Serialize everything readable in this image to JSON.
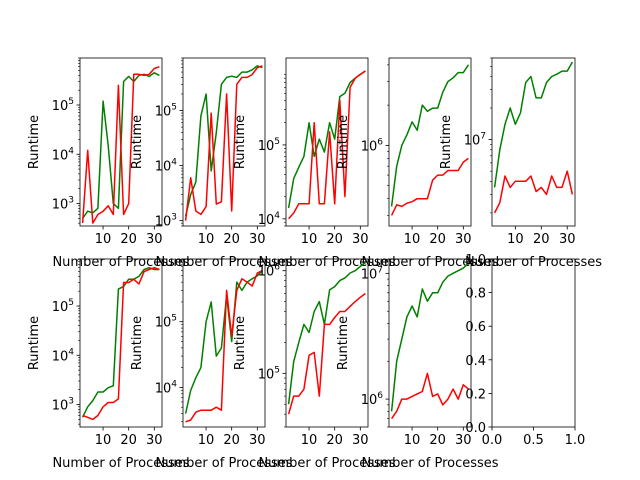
{
  "figure": {
    "xlabel": "Number of Processes",
    "ylabel": "Runtime",
    "colors": {
      "series_a": "#008000",
      "series_b": "#ff0000",
      "axis": "#000000",
      "background": "#ffffff"
    }
  },
  "chart_data": [
    {
      "type": "line",
      "yscale": "log",
      "xlim": [
        1,
        33
      ],
      "ylim": [
        350,
        900000
      ],
      "xticks": [
        10,
        20,
        30
      ],
      "yticks": [
        1000,
        10000,
        100000
      ],
      "ytick_labels": [
        "10^3",
        "10^4",
        "10^5"
      ],
      "xlabel": "Number of Processes",
      "ylabel": "Runtime",
      "x": [
        2,
        4,
        6,
        8,
        10,
        12,
        14,
        16,
        18,
        20,
        22,
        24,
        26,
        28,
        30,
        32
      ],
      "series": [
        {
          "color": "#008000",
          "values": [
            500,
            700,
            650,
            800,
            120000,
            15000,
            1000,
            800,
            300000,
            380000,
            300000,
            400000,
            420000,
            380000,
            450000,
            400000
          ]
        },
        {
          "color": "#ff0000",
          "values": [
            400,
            12000,
            400,
            600,
            700,
            900,
            600,
            250000,
            600,
            1000,
            420000,
            420000,
            400000,
            420000,
            550000,
            600000
          ]
        }
      ]
    },
    {
      "type": "line",
      "yscale": "log",
      "xlim": [
        1,
        33
      ],
      "ylim": [
        800,
        900000
      ],
      "xticks": [
        10,
        20,
        30
      ],
      "yticks": [
        1000,
        10000,
        100000
      ],
      "ytick_labels": [
        "10^3",
        "10^4",
        "10^5"
      ],
      "xlabel": "Number of Processes",
      "ylabel": "Runtime",
      "x": [
        2,
        4,
        6,
        8,
        10,
        12,
        14,
        16,
        18,
        20,
        22,
        24,
        26,
        28,
        30,
        32
      ],
      "series": [
        {
          "color": "#008000",
          "values": [
            1200,
            3000,
            5000,
            80000,
            200000,
            8000,
            40000,
            300000,
            400000,
            420000,
            400000,
            500000,
            500000,
            550000,
            650000,
            600000
          ]
        },
        {
          "color": "#ff0000",
          "values": [
            1000,
            6000,
            1500,
            1300,
            1800,
            90000,
            2000,
            2200,
            200000,
            1500,
            300000,
            400000,
            400000,
            450000,
            600000,
            650000
          ]
        }
      ]
    },
    {
      "type": "line",
      "yscale": "log",
      "xlim": [
        1,
        33
      ],
      "ylim": [
        8000,
        1500000
      ],
      "xticks": [
        10,
        20,
        30
      ],
      "yticks": [
        10000,
        100000
      ],
      "ytick_labels": [
        "10^4",
        "10^5"
      ],
      "xlabel": "Number of Processes",
      "ylabel": "Runtime",
      "x": [
        2,
        4,
        6,
        8,
        10,
        12,
        14,
        16,
        18,
        20,
        22,
        24,
        26,
        28,
        30,
        32
      ],
      "series": [
        {
          "color": "#008000",
          "values": [
            14000,
            35000,
            50000,
            70000,
            200000,
            70000,
            120000,
            80000,
            200000,
            120000,
            450000,
            500000,
            700000,
            800000,
            900000,
            1000000
          ]
        },
        {
          "color": "#ff0000",
          "values": [
            10000,
            12000,
            16000,
            16000,
            16000,
            200000,
            16000,
            16000,
            150000,
            16000,
            400000,
            20000,
            600000,
            800000,
            900000,
            1000000
          ]
        }
      ]
    },
    {
      "type": "line",
      "yscale": "log",
      "xlim": [
        1,
        33
      ],
      "ylim": [
        250000,
        4500000
      ],
      "xticks": [
        10,
        20,
        30
      ],
      "yticks": [
        1000000
      ],
      "ytick_labels": [
        "10^6"
      ],
      "xlabel": "Number of Processes",
      "ylabel": "Runtime",
      "x": [
        2,
        4,
        6,
        8,
        10,
        12,
        14,
        16,
        18,
        20,
        22,
        24,
        26,
        28,
        30,
        32
      ],
      "series": [
        {
          "color": "#008000",
          "values": [
            350000,
            700000,
            1000000,
            1200000,
            1500000,
            1300000,
            2000000,
            1800000,
            1900000,
            1900000,
            2500000,
            3000000,
            3200000,
            3500000,
            3500000,
            4000000
          ]
        },
        {
          "color": "#ff0000",
          "values": [
            300000,
            360000,
            350000,
            370000,
            380000,
            400000,
            400000,
            400000,
            550000,
            600000,
            600000,
            650000,
            650000,
            650000,
            750000,
            800000
          ]
        }
      ]
    },
    {
      "type": "line",
      "yscale": "log",
      "xlim": [
        1,
        33
      ],
      "ylim": [
        1500000,
        60000000
      ],
      "xticks": [
        10,
        20,
        30
      ],
      "yticks": [
        10000000
      ],
      "ytick_labels": [
        "10^7"
      ],
      "xlabel": "Number of Processes",
      "ylabel": "Runtime",
      "x": [
        2,
        4,
        6,
        8,
        10,
        12,
        14,
        16,
        18,
        20,
        22,
        24,
        26,
        28,
        30,
        32
      ],
      "series": [
        {
          "color": "#008000",
          "values": [
            3500000,
            8000000,
            14000000,
            20000000,
            14000000,
            18000000,
            35000000,
            40000000,
            25000000,
            25000000,
            35000000,
            40000000,
            42000000,
            45000000,
            45000000,
            55000000
          ]
        },
        {
          "color": "#ff0000",
          "values": [
            2000000,
            2500000,
            4500000,
            3500000,
            4000000,
            4000000,
            4000000,
            4500000,
            3200000,
            3500000,
            3000000,
            4500000,
            3500000,
            3500000,
            5000000,
            3000000
          ]
        }
      ]
    },
    {
      "type": "line",
      "yscale": "log",
      "xlim": [
        1,
        33
      ],
      "ylim": [
        350,
        900000
      ],
      "xticks": [
        10,
        20,
        30
      ],
      "yticks": [
        1000,
        10000,
        100000
      ],
      "ytick_labels": [
        "10^3",
        "10^4",
        "10^5"
      ],
      "xlabel": "Number of Processes",
      "ylabel": "Runtime",
      "x": [
        2,
        4,
        6,
        8,
        10,
        12,
        14,
        16,
        18,
        20,
        22,
        24,
        26,
        28,
        30,
        32
      ],
      "series": [
        {
          "color": "#008000",
          "values": [
            550,
            900,
            1200,
            1800,
            1800,
            2200,
            2400,
            220000,
            250000,
            350000,
            350000,
            400000,
            550000,
            600000,
            550000,
            550000
          ]
        },
        {
          "color": "#ff0000",
          "values": [
            600,
            550,
            500,
            600,
            900,
            1100,
            1100,
            1300,
            300000,
            300000,
            350000,
            280000,
            500000,
            550000,
            600000,
            550000
          ]
        }
      ]
    },
    {
      "type": "line",
      "yscale": "log",
      "xlim": [
        1,
        33
      ],
      "ylim": [
        2500,
        900000
      ],
      "xticks": [
        10,
        20,
        30
      ],
      "yticks": [
        10000,
        100000
      ],
      "ytick_labels": [
        "10^4",
        "10^5"
      ],
      "xlabel": "Number of Processes",
      "ylabel": "Runtime",
      "x": [
        2,
        4,
        6,
        8,
        10,
        12,
        14,
        16,
        18,
        20,
        22,
        24,
        26,
        28,
        30,
        32
      ],
      "series": [
        {
          "color": "#008000",
          "values": [
            4000,
            9000,
            14000,
            20000,
            100000,
            200000,
            30000,
            40000,
            250000,
            50000,
            400000,
            300000,
            400000,
            450000,
            500000,
            600000
          ]
        },
        {
          "color": "#ff0000",
          "values": [
            3000,
            3200,
            4200,
            4500,
            4500,
            4500,
            5000,
            4500,
            300000,
            60000,
            300000,
            450000,
            400000,
            350000,
            550000,
            600000
          ]
        }
      ]
    },
    {
      "type": "line",
      "yscale": "log",
      "xlim": [
        1,
        33
      ],
      "ylim": [
        30000,
        1300000
      ],
      "xticks": [
        10,
        20,
        30
      ],
      "yticks": [
        100000,
        1000000
      ],
      "ytick_labels": [
        "10^5",
        "10^6"
      ],
      "xlabel": "Number of Processes",
      "ylabel": "Runtime",
      "x": [
        2,
        4,
        6,
        8,
        10,
        12,
        14,
        16,
        18,
        20,
        22,
        24,
        26,
        28,
        30,
        32
      ],
      "series": [
        {
          "color": "#008000",
          "values": [
            50000,
            130000,
            200000,
            300000,
            250000,
            400000,
            500000,
            300000,
            650000,
            700000,
            800000,
            850000,
            950000,
            1000000,
            1100000,
            1200000
          ]
        },
        {
          "color": "#ff0000",
          "values": [
            40000,
            60000,
            60000,
            70000,
            150000,
            160000,
            60000,
            300000,
            300000,
            350000,
            400000,
            400000,
            450000,
            500000,
            550000,
            600000
          ]
        }
      ]
    },
    {
      "type": "line",
      "yscale": "log",
      "xlim": [
        1,
        33
      ],
      "ylim": [
        600000,
        13000000
      ],
      "xticks": [
        10,
        20,
        30
      ],
      "yticks": [
        1000000,
        10000000
      ],
      "ytick_labels": [
        "10^6",
        "10^7"
      ],
      "xlabel": "Number of Processes",
      "ylabel": "Runtime",
      "x": [
        2,
        4,
        6,
        8,
        10,
        12,
        14,
        16,
        18,
        20,
        22,
        24,
        26,
        28,
        30,
        32
      ],
      "series": [
        {
          "color": "#008000",
          "values": [
            800000,
            2000000,
            3000000,
            4500000,
            5500000,
            4500000,
            7500000,
            6000000,
            7000000,
            7000000,
            8500000,
            9500000,
            10000000,
            10500000,
            11000000,
            12000000
          ]
        },
        {
          "color": "#ff0000",
          "values": [
            700000,
            800000,
            1000000,
            1000000,
            1050000,
            1100000,
            1150000,
            1600000,
            1050000,
            1100000,
            900000,
            1000000,
            1200000,
            1000000,
            1300000,
            1200000
          ]
        }
      ]
    },
    {
      "type": "line",
      "yscale": "linear",
      "xlim": [
        0,
        1
      ],
      "ylim": [
        0,
        1
      ],
      "xticks": [
        0.0,
        0.5,
        1.0
      ],
      "yticks": [
        0.0,
        0.2,
        0.4,
        0.6,
        0.8,
        1.0
      ],
      "xtick_labels": [
        "0.0",
        "0.5",
        "1.0"
      ],
      "ytick_labels": [
        "0.0",
        "0.2",
        "0.4",
        "0.6",
        "0.8",
        "1.0"
      ],
      "xlabel": "",
      "ylabel": "",
      "x": [],
      "series": []
    }
  ]
}
